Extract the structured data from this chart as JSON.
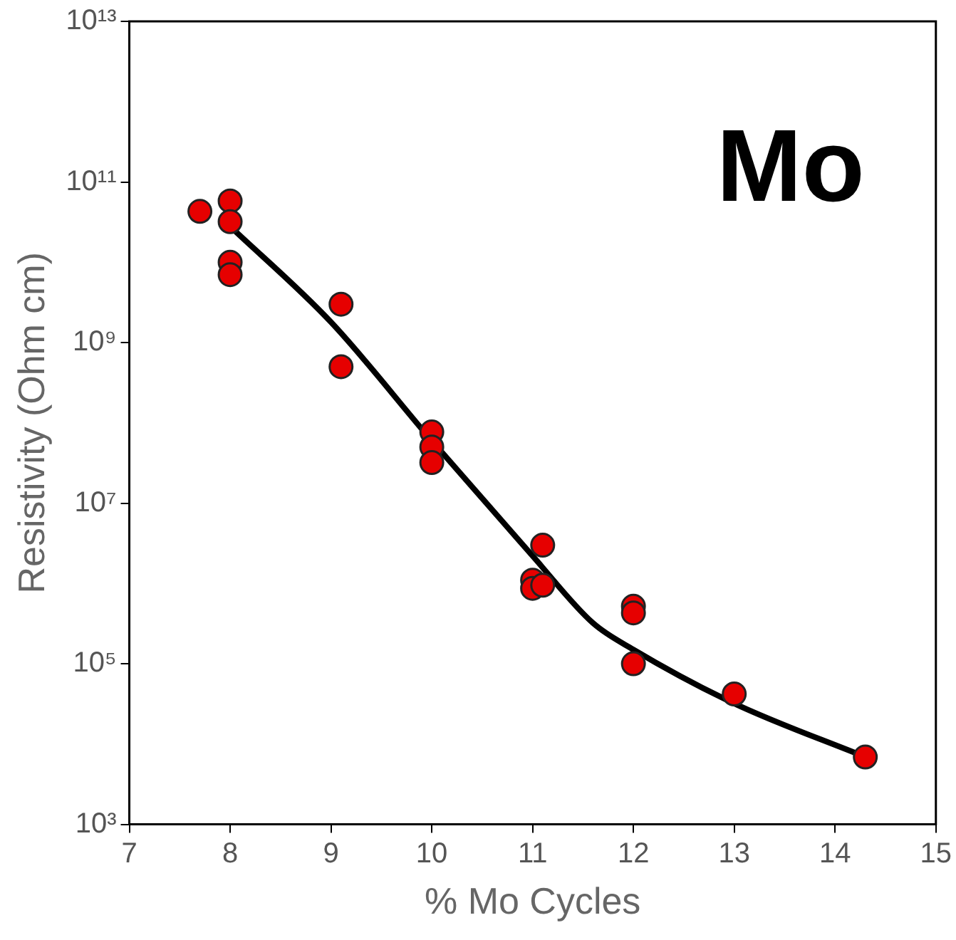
{
  "chart_data": {
    "type": "scatter",
    "xlabel": "% Mo Cycles",
    "ylabel": "Resistivity (Ohm cm)",
    "annotations": [
      "Mo"
    ],
    "log": "y",
    "grid": false,
    "legend": false,
    "marker": "circle",
    "xlim": [
      7,
      15
    ],
    "xticks": [
      7,
      8,
      9,
      10,
      11,
      12,
      13,
      14,
      15
    ],
    "ylim": [
      1000,
      10000000000000
    ],
    "yticks": [
      {
        "value": 1000,
        "label": "10³"
      },
      {
        "value": 100000,
        "label": "10⁵"
      },
      {
        "value": 10000000,
        "label": "10⁷"
      },
      {
        "value": 1000000000,
        "label": "10⁹"
      },
      {
        "value": 100000000000,
        "label": "10¹¹"
      },
      {
        "value": 10000000000000,
        "label": "10¹³"
      }
    ],
    "series": [
      {
        "type": "scatter",
        "color": "#e60000",
        "x": [
          7.7,
          8,
          8,
          8,
          8,
          9.1,
          9.1,
          10,
          10,
          10,
          11.1,
          11,
          11,
          11.1,
          12,
          12,
          12,
          13,
          14.3
        ],
        "values": [
          43000000000,
          58000000000,
          32000000000,
          10000000000,
          7000000000,
          3000000000,
          500000000,
          77000000,
          50000000,
          32000000,
          3000000,
          1100000,
          870000,
          950000,
          520000,
          430000,
          100000,
          42000,
          6900
        ]
      },
      {
        "type": "line",
        "color": "#000000",
        "marker": "none",
        "x": [
          8,
          9,
          10,
          11,
          11.6,
          12,
          13,
          14.3
        ],
        "values": [
          28000000000,
          1800000000,
          60000000,
          2200000,
          320000,
          150000,
          32000,
          6900
        ]
      }
    ]
  }
}
